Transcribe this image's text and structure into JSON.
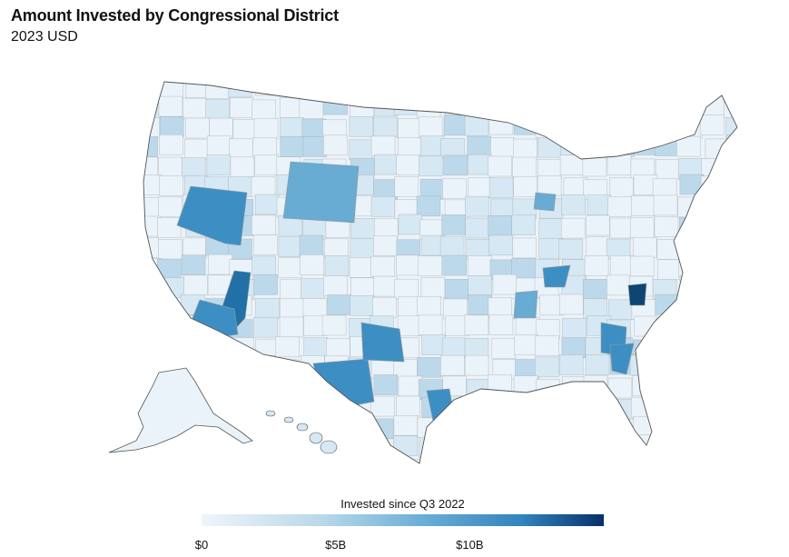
{
  "header": {
    "title": "Amount Invested by Congressional District",
    "subtitle": "2023 USD"
  },
  "legend": {
    "title": "Invested since Q3 2022",
    "ticks": [
      {
        "label": "$0",
        "value": 0
      },
      {
        "label": "$5B",
        "value": 5
      },
      {
        "label": "$10B",
        "value": 10
      }
    ],
    "max_value": 15,
    "colors": [
      "#eef5fa",
      "#b9d8ea",
      "#6baed6",
      "#3182bd",
      "#08306b"
    ]
  },
  "map": {
    "type": "choropleth",
    "region": "United States congressional districts",
    "level_colors": [
      "#eaf3f9",
      "#d6e8f3",
      "#bcd9ec",
      "#94c4e0",
      "#68abd3",
      "#3d8fc3",
      "#2171a8",
      "#0d4673"
    ],
    "border_color": "#999999",
    "highlighted_areas": [
      {
        "name": "Wyoming",
        "level": 4
      },
      {
        "name": "Nevada (north)",
        "level": 5
      },
      {
        "name": "Arizona (west)",
        "level": 6
      },
      {
        "name": "Southern California",
        "level": 5
      },
      {
        "name": "Texas (west)",
        "level": 5
      },
      {
        "name": "Oklahoma (south)",
        "level": 5
      },
      {
        "name": "Houston area",
        "level": 5
      },
      {
        "name": "Arkansas",
        "level": 4
      },
      {
        "name": "Georgia (south)",
        "level": 5
      },
      {
        "name": "South Carolina",
        "level": 5
      },
      {
        "name": "Kentucky",
        "level": 5
      },
      {
        "name": "Virginia",
        "level": 7
      },
      {
        "name": "Michigan (west)",
        "level": 4
      }
    ]
  }
}
